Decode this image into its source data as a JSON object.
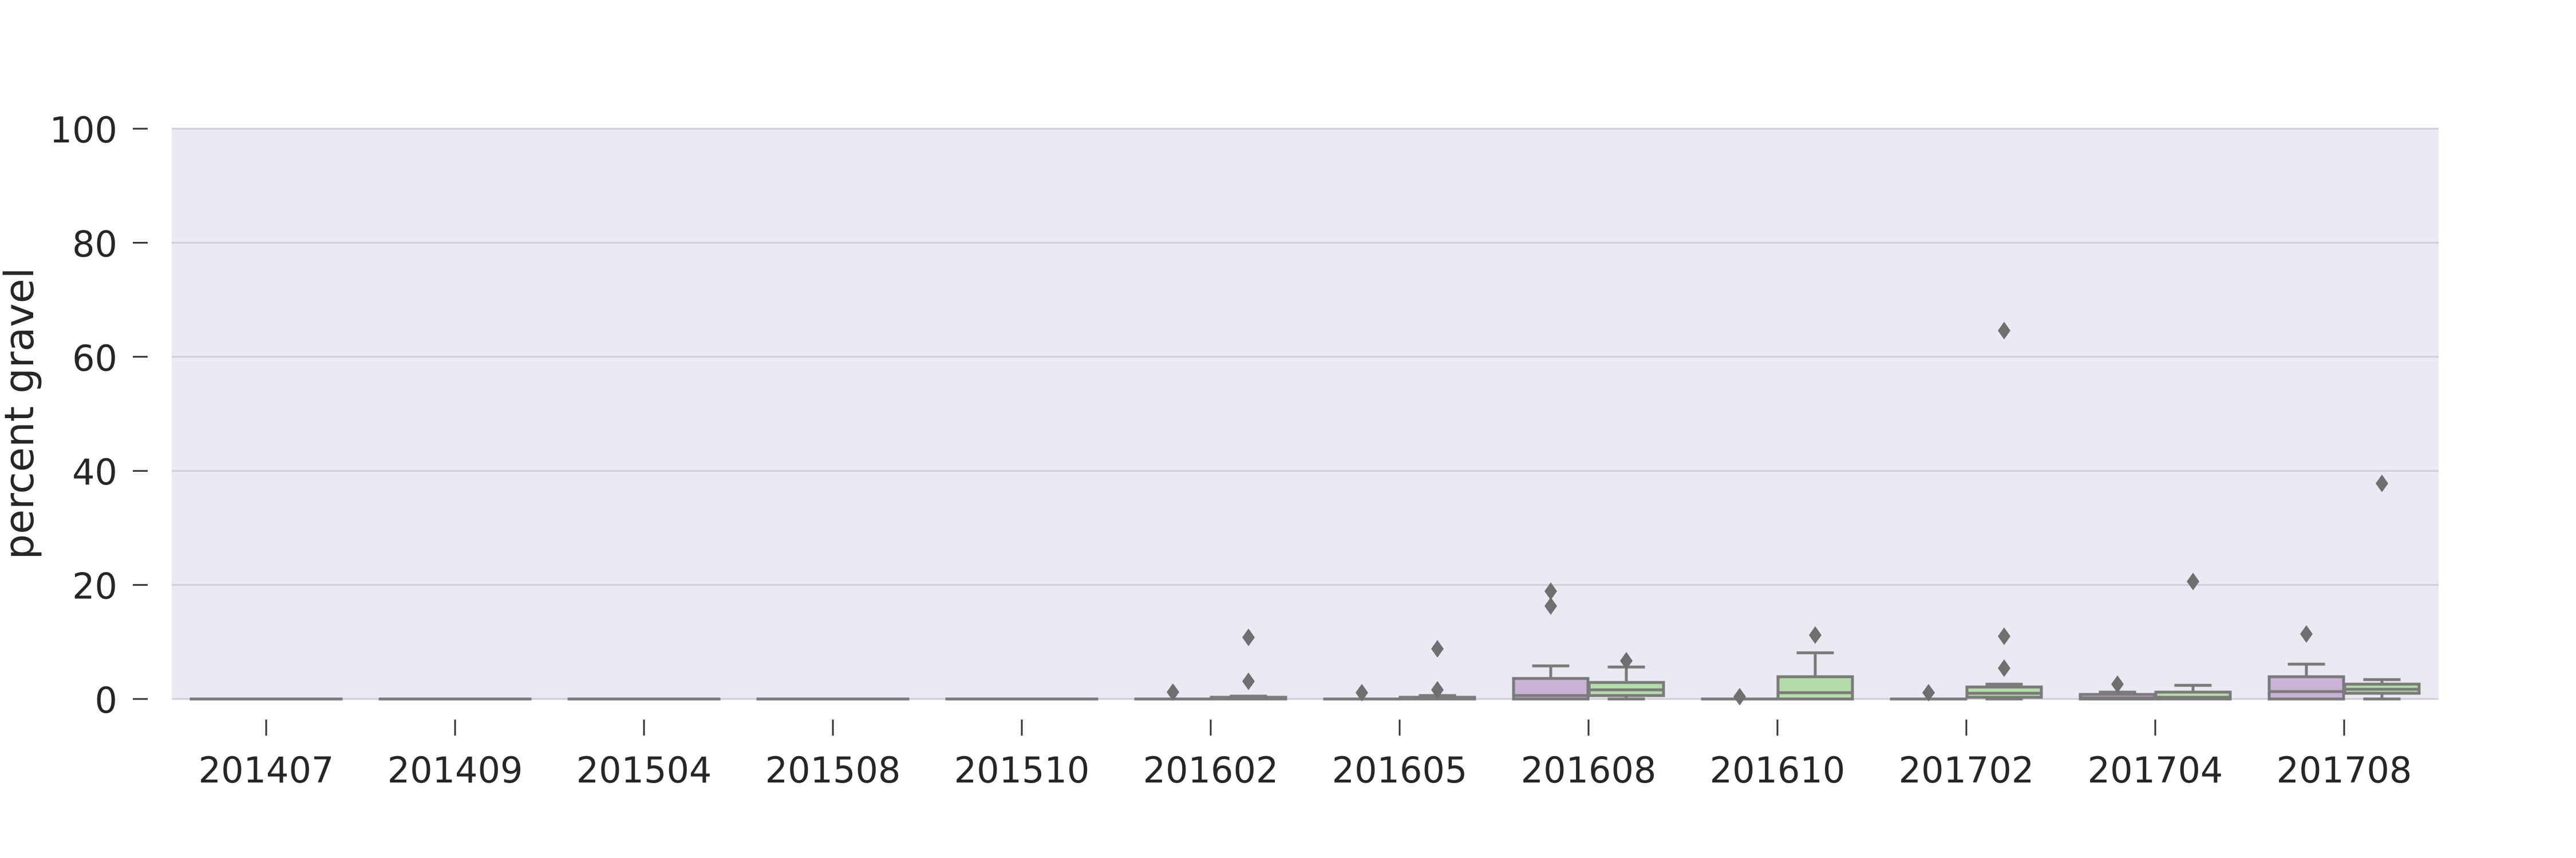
{
  "chart_data": {
    "type": "box",
    "ylabel": "percent gravel",
    "ylim": [
      0,
      100
    ],
    "yticks": [
      0,
      20,
      40,
      60,
      80,
      100
    ],
    "grid": true,
    "legend": "none",
    "categories": [
      "201407",
      "201409",
      "201504",
      "201508",
      "201510",
      "201602",
      "201605",
      "201608",
      "201610",
      "201702",
      "201704",
      "201708"
    ],
    "series": [
      {
        "color": "#c9b3d6",
        "boxes": [
          {
            "whislo": 0,
            "q1": 0,
            "med": 0,
            "q3": 0,
            "whishi": 0,
            "fliers": []
          },
          {
            "whislo": 0,
            "q1": 0,
            "med": 0,
            "q3": 0,
            "whishi": 0,
            "fliers": []
          },
          {
            "whislo": 0,
            "q1": 0,
            "med": 0,
            "q3": 0,
            "whishi": 0,
            "fliers": []
          },
          {
            "whislo": 0,
            "q1": 0,
            "med": 0,
            "q3": 0,
            "whishi": 0,
            "fliers": []
          },
          {
            "whislo": 0,
            "q1": 0,
            "med": 0,
            "q3": 0,
            "whishi": 0,
            "fliers": []
          },
          {
            "whislo": 0,
            "q1": 0,
            "med": 0,
            "q3": 0,
            "whishi": 0,
            "fliers": [
              1.2
            ]
          },
          {
            "whislo": 0,
            "q1": 0,
            "med": 0,
            "q3": 0,
            "whishi": 0,
            "fliers": [
              1.1
            ]
          },
          {
            "whislo": 0,
            "q1": 0,
            "med": 0.6,
            "q3": 3.6,
            "whishi": 5.8,
            "fliers": [
              16.3,
              18.9
            ]
          },
          {
            "whislo": 0,
            "q1": 0,
            "med": 0,
            "q3": 0,
            "whishi": 0,
            "fliers": [
              0.4
            ]
          },
          {
            "whislo": 0,
            "q1": 0,
            "med": 0,
            "q3": 0,
            "whishi": 0,
            "fliers": [
              1.1
            ]
          },
          {
            "whislo": 0,
            "q1": 0,
            "med": 0.2,
            "q3": 0.8,
            "whishi": 1.2,
            "fliers": [
              2.6
            ]
          },
          {
            "whislo": 0,
            "q1": 0,
            "med": 1.3,
            "q3": 3.9,
            "whishi": 6.1,
            "fliers": [
              11.4
            ]
          }
        ]
      },
      {
        "color": "#b5dbaa",
        "boxes": [
          {
            "whislo": 0,
            "q1": 0,
            "med": 0,
            "q3": 0,
            "whishi": 0,
            "fliers": []
          },
          {
            "whislo": 0,
            "q1": 0,
            "med": 0,
            "q3": 0,
            "whishi": 0,
            "fliers": []
          },
          {
            "whislo": 0,
            "q1": 0,
            "med": 0,
            "q3": 0,
            "whishi": 0,
            "fliers": []
          },
          {
            "whislo": 0,
            "q1": 0,
            "med": 0,
            "q3": 0,
            "whishi": 0,
            "fliers": []
          },
          {
            "whislo": 0,
            "q1": 0,
            "med": 0,
            "q3": 0,
            "whishi": 0,
            "fliers": []
          },
          {
            "whislo": 0,
            "q1": 0,
            "med": 0.1,
            "q3": 0.3,
            "whishi": 0.5,
            "fliers": [
              3.1,
              10.8
            ]
          },
          {
            "whislo": 0,
            "q1": 0,
            "med": 0.1,
            "q3": 0.3,
            "whishi": 0.6,
            "fliers": [
              1.6,
              8.8
            ]
          },
          {
            "whislo": 0,
            "q1": 0.6,
            "med": 1.6,
            "q3": 2.9,
            "whishi": 5.6,
            "fliers": [
              6.7
            ]
          },
          {
            "whislo": 0,
            "q1": 0,
            "med": 1.1,
            "q3": 3.9,
            "whishi": 8.1,
            "fliers": [
              11.2
            ]
          },
          {
            "whislo": 0,
            "q1": 0.3,
            "med": 1.0,
            "q3": 2.1,
            "whishi": 2.6,
            "fliers": [
              5.4,
              11.0,
              64.6
            ]
          },
          {
            "whislo": 0,
            "q1": 0,
            "med": 0.3,
            "q3": 1.2,
            "whishi": 2.4,
            "fliers": [
              20.6
            ]
          },
          {
            "whislo": 0,
            "q1": 1.0,
            "med": 1.7,
            "q3": 2.6,
            "whishi": 3.4,
            "fliers": [
              37.8
            ]
          }
        ]
      }
    ]
  }
}
